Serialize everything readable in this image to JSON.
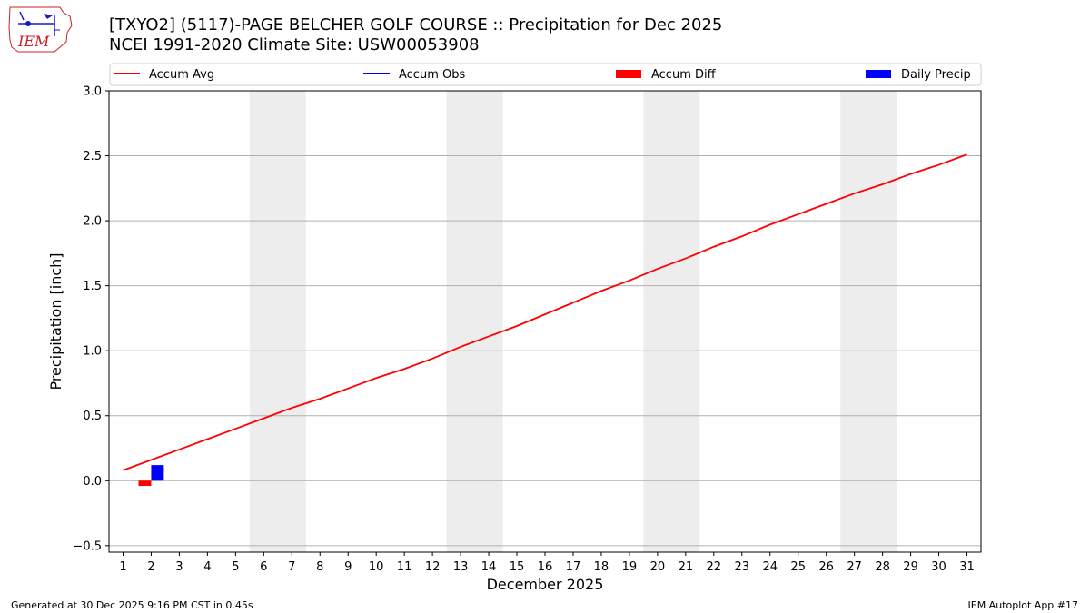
{
  "header": {
    "title_line1": "[TXYO2] (5117)-PAGE BELCHER GOLF COURSE :: Precipitation for Dec 2025",
    "title_line2": "NCEI 1991-2020 Climate Site: USW00053908",
    "logo_text": "IEM"
  },
  "footer": {
    "generated": "Generated at 30 Dec 2025 9:16 PM CST in 0.45s",
    "app": "IEM Autoplot App #17"
  },
  "colors": {
    "avg": "#ff0000",
    "obs": "#0000ff",
    "diff": "#ff0000",
    "daily": "#0000ff",
    "weekend": "#ededed",
    "grid": "#b0b0b0"
  },
  "chart_data": {
    "type": "line",
    "xlabel": "December 2025",
    "ylabel": "Precipitation [inch]",
    "ylim": [
      -0.55,
      3.0
    ],
    "yticks": [
      -0.5,
      0.0,
      0.5,
      1.0,
      1.5,
      2.0,
      2.5,
      3.0
    ],
    "ytick_labels": [
      "−0.5",
      "0.0",
      "0.5",
      "1.0",
      "1.5",
      "2.0",
      "2.5",
      "3.0"
    ],
    "xlim": [
      0.5,
      31.5
    ],
    "x": [
      1,
      2,
      3,
      4,
      5,
      6,
      7,
      8,
      9,
      10,
      11,
      12,
      13,
      14,
      15,
      16,
      17,
      18,
      19,
      20,
      21,
      22,
      23,
      24,
      25,
      26,
      27,
      28,
      29,
      30,
      31
    ],
    "grid": "horizontal",
    "weekend_spans": [
      [
        5.5,
        7.5
      ],
      [
        12.5,
        14.5
      ],
      [
        19.5,
        21.5
      ],
      [
        26.5,
        28.5
      ]
    ],
    "legend": {
      "placement": "top",
      "entries": [
        {
          "label": "Accum Avg",
          "kind": "line",
          "series": "avg"
        },
        {
          "label": "Accum Obs",
          "kind": "line",
          "series": "obs"
        },
        {
          "label": "Accum Diff",
          "kind": "bar",
          "series": "diff"
        },
        {
          "label": "Daily Precip",
          "kind": "bar",
          "series": "daily"
        }
      ]
    },
    "series": [
      {
        "name": "Accum Avg",
        "type": "line",
        "x": [
          1,
          2,
          3,
          4,
          5,
          6,
          7,
          8,
          9,
          10,
          11,
          12,
          13,
          14,
          15,
          16,
          17,
          18,
          19,
          20,
          21,
          22,
          23,
          24,
          25,
          26,
          27,
          28,
          29,
          30,
          31
        ],
        "values": [
          0.08,
          0.16,
          0.24,
          0.32,
          0.4,
          0.48,
          0.56,
          0.63,
          0.71,
          0.79,
          0.86,
          0.94,
          1.03,
          1.11,
          1.19,
          1.28,
          1.37,
          1.46,
          1.54,
          1.63,
          1.71,
          1.8,
          1.88,
          1.97,
          2.05,
          2.13,
          2.21,
          2.28,
          2.36,
          2.43,
          2.51
        ]
      },
      {
        "name": "Accum Obs",
        "type": "line",
        "x": [],
        "values": []
      },
      {
        "name": "Accum Diff",
        "type": "bar",
        "x": [
          2
        ],
        "values": [
          -0.04
        ]
      },
      {
        "name": "Daily Precip",
        "type": "bar",
        "x": [
          2
        ],
        "values": [
          0.12
        ]
      }
    ]
  }
}
